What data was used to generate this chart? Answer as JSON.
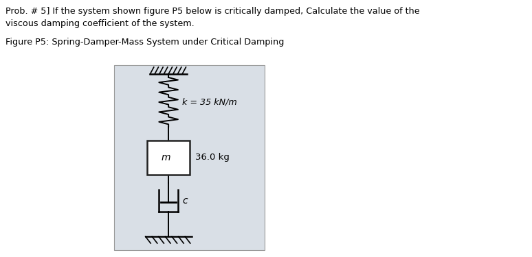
{
  "title_line1": "Prob. # 5] If the system shown figure P5 below is critically damped, Calculate the value of the",
  "title_line2": "viscous damping coefficient of the system.",
  "figure_label": "Figure P5: Spring-Damper-Mass System under Critical Damping",
  "spring_label": "k = 35 kN/m",
  "mass_label": "m",
  "mass_value": "36.0 kg",
  "damper_label": "c",
  "bg_color": "#ffffff",
  "panel_color": "#d9dfe6",
  "panel_edge_color": "#999999",
  "text_color": "#000000",
  "element_color": "#000000",
  "mass_box_color": "#ffffff",
  "mass_box_edge": "#222222",
  "damper_box_color": "#ffffff",
  "damper_box_edge": "#222222"
}
